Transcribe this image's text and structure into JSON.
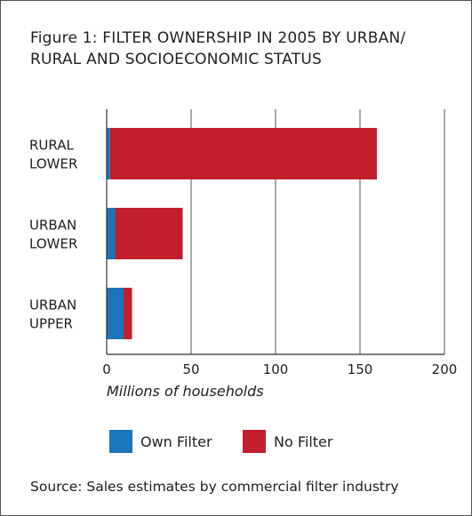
{
  "chart_data": {
    "type": "bar",
    "orientation": "horizontal",
    "stacked": true,
    "title": "Figure 1: FILTER OWNERSHIP IN 2005 BY URBAN/ RURAL AND SOCIOECONOMIC STATUS",
    "categories": [
      [
        "RURAL",
        "LOWER"
      ],
      [
        "URBAN",
        "LOWER"
      ],
      [
        "URBAN",
        "UPPER"
      ]
    ],
    "series": [
      {
        "name": "Own Filter",
        "values": [
          2,
          5,
          10
        ],
        "color": "#1b75bb"
      },
      {
        "name": "No Filter",
        "values": [
          158,
          40,
          5
        ],
        "color": "#c31e2d"
      }
    ],
    "xlabel": "Millions of households",
    "ylabel": "",
    "xlim": [
      0,
      200
    ],
    "xticks": [
      0,
      50,
      100,
      150,
      200
    ],
    "grid": true,
    "legend": "bottom",
    "source": "Source: Sales estimates by commercial filter industry"
  }
}
